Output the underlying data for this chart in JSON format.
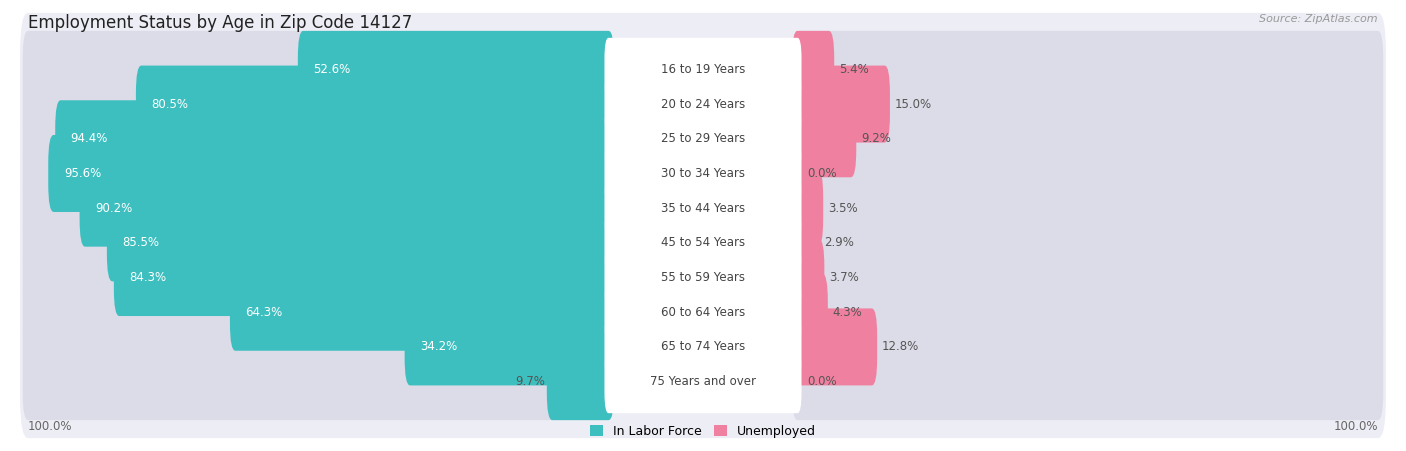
{
  "title": "Employment Status by Age in Zip Code 14127",
  "source": "Source: ZipAtlas.com",
  "categories": [
    "16 to 19 Years",
    "20 to 24 Years",
    "25 to 29 Years",
    "30 to 34 Years",
    "35 to 44 Years",
    "45 to 54 Years",
    "55 to 59 Years",
    "60 to 64 Years",
    "65 to 74 Years",
    "75 Years and over"
  ],
  "in_labor_force": [
    52.6,
    80.5,
    94.4,
    95.6,
    90.2,
    85.5,
    84.3,
    64.3,
    34.2,
    9.7
  ],
  "unemployed": [
    5.4,
    15.0,
    9.2,
    0.0,
    3.5,
    2.9,
    3.7,
    4.3,
    12.8,
    0.0
  ],
  "labor_color": "#3dbfbf",
  "unemployed_color": "#f080a0",
  "row_bg_color": "#ededf5",
  "bar_bg_left_color": "#dcdce8",
  "bar_bg_right_color": "#dcdce8",
  "left_axis_label": "100.0%",
  "right_axis_label": "100.0%",
  "title_fontsize": 12,
  "label_fontsize": 8.5,
  "category_fontsize": 8.5,
  "legend_fontsize": 9,
  "source_fontsize": 8
}
